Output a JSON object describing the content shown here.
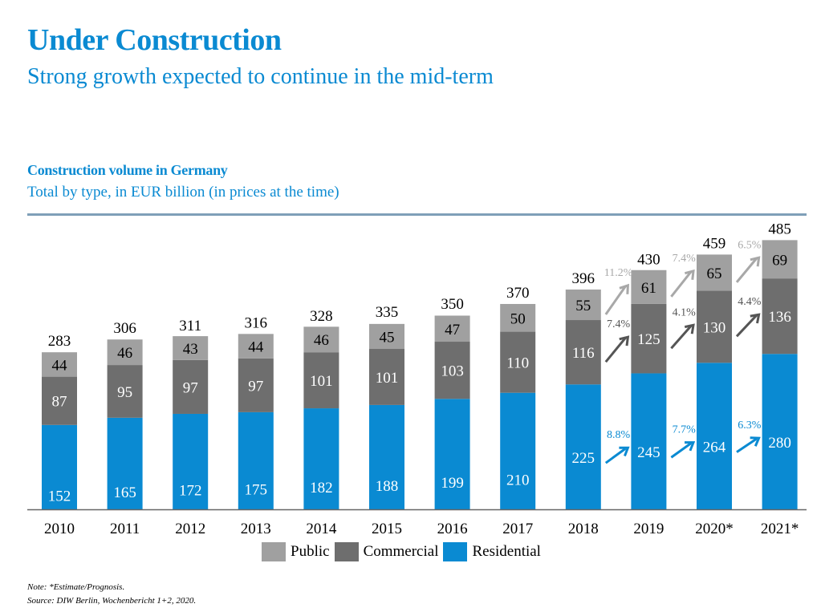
{
  "header": {
    "title": "Under Construction",
    "subtitle": "Strong growth expected to continue in the mid-term"
  },
  "chart_data": {
    "type": "bar",
    "stacked": true,
    "title": "Construction volume in Germany",
    "subtitle": "Total by type, in EUR billion (in prices at the time)",
    "xlabel": "",
    "ylabel": "",
    "ylim": [
      0,
      500
    ],
    "grid": false,
    "legend_position": "bottom-center",
    "categories": [
      "2010",
      "2011",
      "2012",
      "2013",
      "2014",
      "2015",
      "2016",
      "2017",
      "2018",
      "2019",
      "2020*",
      "2021*"
    ],
    "series": [
      {
        "name": "Residential",
        "color": "#0a8ad2",
        "label_color": "#ffffff",
        "values": [
          152,
          165,
          172,
          175,
          182,
          188,
          199,
          210,
          225,
          245,
          264,
          280
        ]
      },
      {
        "name": "Commercial",
        "color": "#6e6e6e",
        "label_color": "#ffffff",
        "values": [
          87,
          95,
          97,
          97,
          101,
          101,
          103,
          110,
          116,
          125,
          130,
          136
        ]
      },
      {
        "name": "Public",
        "color": "#a0a0a0",
        "label_color": "#000000",
        "values": [
          44,
          46,
          43,
          44,
          46,
          45,
          47,
          50,
          55,
          61,
          65,
          69
        ]
      }
    ],
    "totals": [
      283,
      306,
      311,
      316,
      328,
      335,
      350,
      370,
      396,
      430,
      459,
      485
    ],
    "growth_annotations": [
      {
        "series": "Public",
        "color": "#a8a8a8",
        "from": "2018",
        "to": "2019",
        "label": "11.2%"
      },
      {
        "series": "Public",
        "color": "#a8a8a8",
        "from": "2019",
        "to": "2020*",
        "label": "7.4%"
      },
      {
        "series": "Public",
        "color": "#a8a8a8",
        "from": "2020*",
        "to": "2021*",
        "label": "6.5%"
      },
      {
        "series": "Commercial",
        "color": "#555555",
        "from": "2018",
        "to": "2019",
        "label": "7.4%"
      },
      {
        "series": "Commercial",
        "color": "#555555",
        "from": "2019",
        "to": "2020*",
        "label": "4.1%"
      },
      {
        "series": "Commercial",
        "color": "#555555",
        "from": "2020*",
        "to": "2021*",
        "label": "4.4%"
      },
      {
        "series": "Residential",
        "color": "#0a8ad2",
        "from": "2018",
        "to": "2019",
        "label": "8.8%"
      },
      {
        "series": "Residential",
        "color": "#0a8ad2",
        "from": "2019",
        "to": "2020*",
        "label": "7.7%"
      },
      {
        "series": "Residential",
        "color": "#0a8ad2",
        "from": "2020*",
        "to": "2021*",
        "label": "6.3%"
      }
    ],
    "legend": [
      "Public",
      "Commercial",
      "Residential"
    ]
  },
  "footer": {
    "note": "Note: *Estimate/Prognosis.",
    "source": "Source: DIW Berlin, Wochenbericht 1+2, 2020."
  }
}
